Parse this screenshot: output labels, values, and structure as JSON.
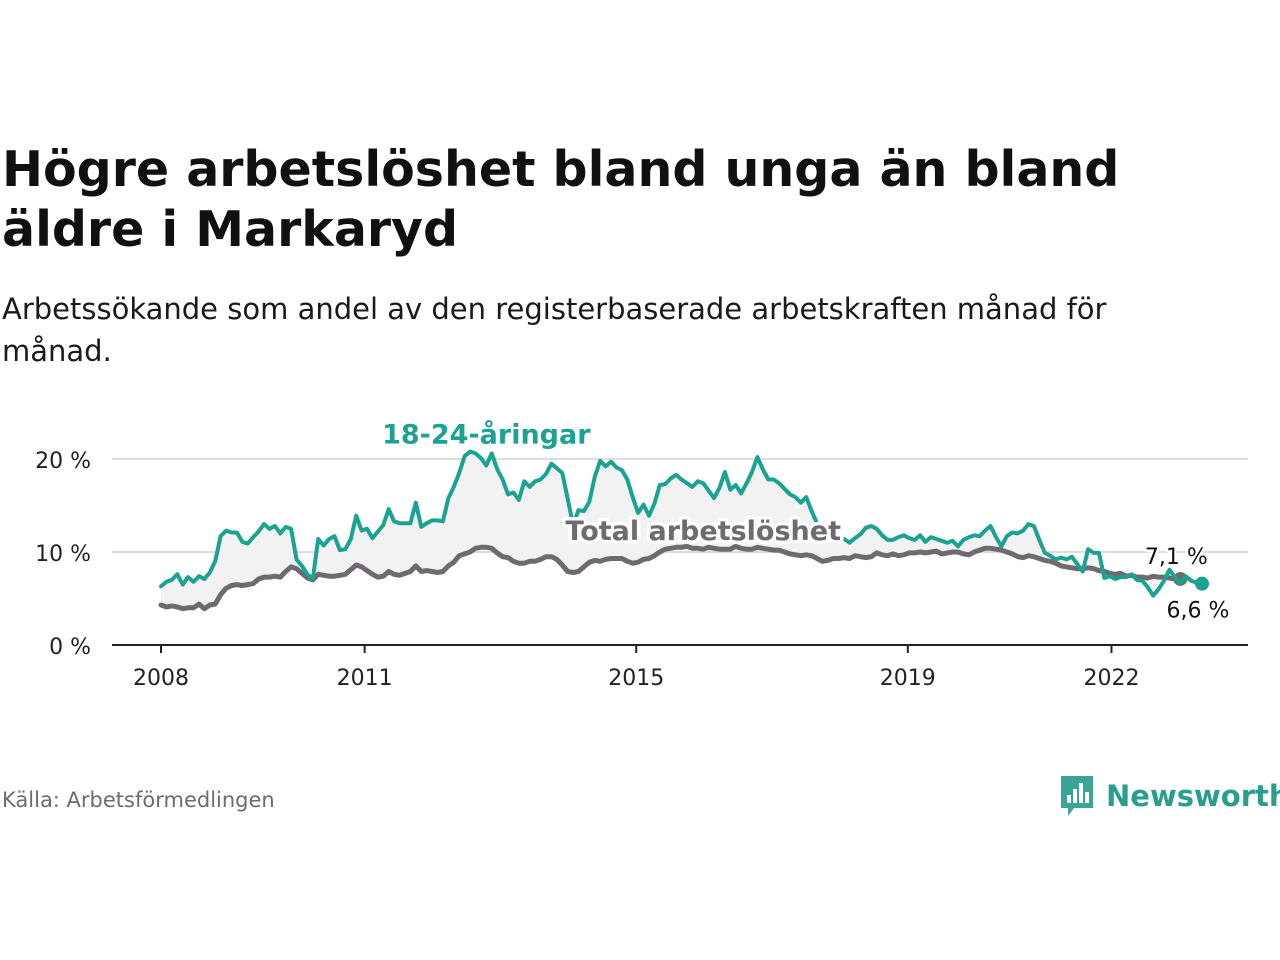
{
  "title": "Högre arbetslöshet bland unga än bland äldre i Markaryd",
  "subtitle": "Arbetssökande som andel av den registerbaserade arbetskraften månad för månad.",
  "source": "Källa: Arbetsförmedlingen",
  "brand": {
    "name": "Newsworthy",
    "icon": "newsworthy-logo-icon",
    "color": "#2a9d91"
  },
  "colors": {
    "youth": "#1aa391",
    "total": "#6e6a70",
    "band": "#f2f2f2",
    "grid": "#dddddd",
    "axis": "#222222"
  },
  "chart_data": {
    "type": "line",
    "x_start": "2008-01",
    "x_end": "2023-05",
    "x_ticks": [
      "2008",
      "2011",
      "2015",
      "2019",
      "2022"
    ],
    "y_ticks": [
      "0 %",
      "10 %",
      "20 %"
    ],
    "ylim": [
      0,
      20
    ],
    "grid": true,
    "series": [
      {
        "name": "18-24-åringar",
        "key": "youth",
        "values": [
          6.3,
          6.8,
          7.0,
          7.6,
          6.5,
          7.3,
          6.8,
          7.4,
          7.1,
          7.8,
          9.0,
          11.7,
          12.3,
          12.1,
          12.1,
          11.1,
          10.9,
          11.6,
          12.2,
          13.0,
          12.5,
          12.8,
          12.0,
          12.7,
          12.5,
          9.2,
          8.5,
          7.6,
          7.1,
          11.4,
          10.7,
          11.4,
          11.7,
          10.2,
          10.3,
          11.4,
          13.9,
          12.3,
          12.5,
          11.5,
          12.2,
          12.9,
          14.6,
          13.3,
          13.1,
          13.1,
          13.1,
          15.3,
          12.7,
          13.1,
          13.4,
          13.4,
          13.3,
          15.8,
          17.0,
          18.5,
          20.3,
          20.8,
          20.6,
          20.1,
          19.3,
          20.6,
          18.9,
          17.8,
          16.2,
          16.4,
          15.6,
          17.6,
          17.0,
          17.6,
          17.8,
          18.4,
          19.5,
          19.0,
          18.5,
          15.8,
          12.9,
          14.5,
          14.4,
          15.4,
          18.1,
          19.8,
          19.2,
          19.7,
          19.1,
          18.8,
          17.8,
          15.9,
          14.2,
          15.1,
          13.9,
          15.2,
          17.2,
          17.3,
          17.9,
          18.3,
          17.8,
          17.4,
          17.0,
          17.6,
          17.4,
          16.6,
          15.8,
          16.9,
          18.6,
          16.7,
          17.2,
          16.3,
          17.4,
          18.6,
          20.2,
          18.9,
          17.8,
          17.8,
          17.4,
          16.8,
          16.2,
          15.9,
          15.3,
          15.9,
          14.4,
          13.1,
          12.7,
          12.3,
          11.9,
          11.6,
          11.4,
          11.0,
          11.5,
          11.9,
          12.6,
          12.8,
          12.5,
          11.8,
          11.3,
          11.3,
          11.6,
          11.8,
          11.5,
          11.3,
          11.8,
          11.1,
          11.6,
          11.4,
          11.2,
          11.0,
          11.2,
          10.6,
          11.3,
          11.6,
          11.8,
          11.7,
          12.3,
          12.8,
          11.6,
          10.6,
          11.7,
          12.1,
          12.0,
          12.3,
          13.0,
          12.8,
          11.3,
          9.9,
          9.6,
          9.2,
          9.4,
          9.2,
          9.5,
          8.7,
          7.9,
          10.3,
          9.9,
          9.9,
          7.2,
          7.4,
          7.1,
          7.3,
          7.3,
          7.6,
          7.0,
          6.9,
          6.2,
          5.3,
          6.0,
          6.9,
          8.1,
          7.3,
          6.6,
          7.4,
          6.9,
          6.7,
          6.6
        ]
      },
      {
        "name": "Total arbetslöshet",
        "key": "total",
        "values": [
          4.3,
          4.1,
          4.2,
          4.1,
          3.9,
          4.0,
          4.0,
          4.4,
          3.9,
          4.3,
          4.4,
          5.4,
          6.1,
          6.4,
          6.5,
          6.4,
          6.5,
          6.6,
          7.1,
          7.3,
          7.3,
          7.4,
          7.3,
          7.9,
          8.4,
          8.2,
          7.7,
          7.2,
          7.0,
          7.6,
          7.5,
          7.4,
          7.4,
          7.5,
          7.6,
          8.1,
          8.6,
          8.4,
          8.0,
          7.6,
          7.3,
          7.4,
          7.9,
          7.6,
          7.5,
          7.7,
          7.9,
          8.5,
          7.9,
          8.0,
          7.9,
          7.8,
          7.9,
          8.5,
          8.9,
          9.6,
          9.8,
          10.0,
          10.4,
          10.5,
          10.5,
          10.4,
          9.9,
          9.5,
          9.4,
          9.0,
          8.8,
          8.8,
          9.0,
          9.0,
          9.2,
          9.5,
          9.5,
          9.2,
          8.6,
          7.9,
          7.8,
          7.9,
          8.4,
          8.9,
          9.1,
          9.0,
          9.2,
          9.3,
          9.3,
          9.3,
          9.0,
          8.8,
          8.9,
          9.2,
          9.3,
          9.6,
          10.0,
          10.3,
          10.4,
          10.5,
          10.5,
          10.6,
          10.4,
          10.4,
          10.3,
          10.5,
          10.4,
          10.3,
          10.3,
          10.3,
          10.6,
          10.4,
          10.3,
          10.3,
          10.5,
          10.4,
          10.3,
          10.2,
          10.2,
          10.0,
          9.8,
          9.7,
          9.6,
          9.7,
          9.6,
          9.3,
          9.0,
          9.1,
          9.3,
          9.3,
          9.4,
          9.3,
          9.6,
          9.5,
          9.4,
          9.5,
          9.9,
          9.7,
          9.6,
          9.8,
          9.6,
          9.7,
          9.9,
          9.9,
          10.0,
          9.9,
          10.0,
          10.1,
          9.8,
          9.9,
          10.0,
          10.0,
          9.8,
          9.7,
          10.0,
          10.2,
          10.4,
          10.4,
          10.3,
          10.2,
          10.0,
          9.8,
          9.5,
          9.4,
          9.6,
          9.5,
          9.3,
          9.1,
          9.0,
          8.8,
          8.5,
          8.4,
          8.3,
          8.2,
          8.2,
          8.3,
          8.2,
          8.0,
          7.9,
          7.7,
          7.6,
          7.7,
          7.4,
          7.5,
          7.3,
          7.3,
          7.2,
          7.4,
          7.3,
          7.3,
          7.2,
          7.1,
          7.1
        ]
      }
    ],
    "series_labels": [
      {
        "text": "18-24-åringar",
        "series": "youth",
        "anchor_index": 60,
        "dy": -22
      },
      {
        "text": "Total arbetslöshet",
        "series": "total",
        "anchor_index": 100,
        "dy": -9
      }
    ],
    "end_labels": [
      {
        "text": "7,1 %",
        "series": "total",
        "dy": -15
      },
      {
        "text": "6,6 %",
        "series": "youth",
        "dy": 34
      }
    ]
  }
}
